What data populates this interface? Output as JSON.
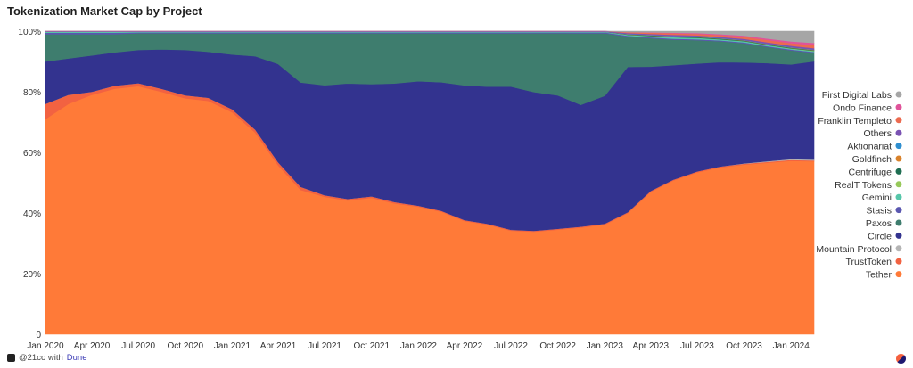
{
  "title": "Tokenization Market Cap by Project",
  "footer": {
    "author": "@21co with",
    "brand": "Dune"
  },
  "chart_data": {
    "type": "area",
    "stacked": true,
    "normalized": true,
    "title": "Tokenization Market Cap by Project",
    "ylim": [
      0,
      100
    ],
    "yticks": [
      "0",
      "20%",
      "40%",
      "60%",
      "80%",
      "100%"
    ],
    "xticks": [
      "Jan 2020",
      "Apr 2020",
      "Jul 2020",
      "Oct 2020",
      "Jan 2021",
      "Apr 2021",
      "Jul 2021",
      "Oct 2021",
      "Jan 2022",
      "Apr 2022",
      "Jul 2022",
      "Oct 2022",
      "Jan 2023",
      "Apr 2023",
      "Jul 2023",
      "Oct 2023",
      "Jan 2024"
    ],
    "grid": false,
    "legend_position": "right",
    "x": [
      "2020-01-01",
      "2020-02-15",
      "2020-04-01",
      "2020-05-15",
      "2020-07-01",
      "2020-08-15",
      "2020-10-01",
      "2020-11-15",
      "2021-01-01",
      "2021-02-15",
      "2021-04-01",
      "2021-05-15",
      "2021-07-01",
      "2021-08-15",
      "2021-10-01",
      "2021-11-15",
      "2022-01-01",
      "2022-02-15",
      "2022-04-01",
      "2022-05-15",
      "2022-07-01",
      "2022-08-15",
      "2022-10-01",
      "2022-11-15",
      "2023-01-01",
      "2023-02-15",
      "2023-04-01",
      "2023-05-15",
      "2023-07-01",
      "2023-08-15",
      "2023-10-01",
      "2023-11-15",
      "2024-01-01",
      "2024-02-15"
    ],
    "series": [
      {
        "name": "Tether",
        "color": "#ff7a38",
        "values": [
          71,
          76,
          79,
          81,
          82,
          80,
          78,
          76,
          73,
          66,
          55,
          47,
          45,
          44,
          45,
          43,
          42,
          40,
          37,
          36,
          34,
          34,
          34.5,
          35,
          36,
          40,
          47,
          51,
          54,
          56,
          57.5,
          58.5,
          59.5,
          59
        ]
      },
      {
        "name": "TrustToken",
        "color": "#f26241",
        "values": [
          5,
          3,
          1,
          1,
          1,
          1,
          1,
          1,
          1,
          1,
          1,
          1,
          0.5,
          0.5,
          0.5,
          0.5,
          0.3,
          0.3,
          0.3,
          0.3,
          0.3,
          0.3,
          0.3,
          0.3,
          0.3,
          0.3,
          0.3,
          0.3,
          0.3,
          0.3,
          0.3,
          0.3,
          0.3,
          0.3
        ]
      },
      {
        "name": "Mountain Protocol",
        "color": "#b5b5b5",
        "values": [
          0,
          0,
          0,
          0,
          0,
          0,
          0,
          0,
          0,
          0,
          0,
          0,
          0,
          0,
          0,
          0,
          0,
          0,
          0,
          0,
          0,
          0,
          0,
          0,
          0,
          0,
          0,
          0,
          0,
          0,
          0.1,
          0.2,
          0.3,
          0.3
        ]
      },
      {
        "name": "Circle",
        "color": "#33338f",
        "values": [
          14,
          12,
          12,
          11,
          11,
          13,
          15,
          15,
          18,
          24,
          32,
          34,
          36,
          38,
          37,
          39,
          41,
          42,
          44,
          45,
          47,
          46,
          44,
          40,
          42,
          48,
          41,
          38,
          36,
          35,
          34.2,
          33.5,
          32.5,
          33.5
        ]
      },
      {
        "name": "Paxos",
        "color": "#3e7d6e",
        "values": [
          9,
          8,
          7,
          6,
          5.5,
          5.3,
          5.5,
          6,
          7,
          7.5,
          10,
          16,
          17,
          16.5,
          16.8,
          16.5,
          15.8,
          16,
          17,
          17.5,
          17.5,
          19.5,
          20.5,
          23.5,
          20.5,
          10,
          9.4,
          8.5,
          7.8,
          7,
          6.5,
          5.5,
          4.8,
          2.9
        ]
      },
      {
        "name": "Stasis",
        "color": "#5a57b0",
        "values": [
          0.5,
          0.5,
          0.5,
          0.5,
          0.3,
          0.3,
          0.3,
          0.3,
          0.3,
          0.3,
          0.3,
          0.3,
          0.3,
          0.3,
          0.3,
          0.3,
          0.3,
          0.3,
          0.3,
          0.3,
          0.3,
          0.3,
          0.3,
          0.3,
          0.3,
          0.3,
          0.3,
          0.3,
          0.3,
          0.3,
          0.3,
          0.3,
          0.3,
          0.3
        ]
      },
      {
        "name": "Gemini",
        "color": "#56c6a9",
        "values": [
          0.3,
          0.3,
          0.3,
          0.3,
          0.2,
          0.2,
          0.2,
          0.2,
          0.2,
          0.2,
          0.2,
          0.2,
          0.2,
          0.2,
          0.2,
          0.2,
          0.2,
          0.2,
          0.2,
          0.2,
          0.2,
          0.2,
          0.2,
          0.2,
          0.2,
          0.3,
          0.4,
          0.5,
          0.5,
          0.4,
          0.4,
          0.4,
          0.3,
          0.3
        ]
      },
      {
        "name": "RealT Tokens",
        "color": "#97c95a",
        "values": [
          0,
          0,
          0,
          0,
          0,
          0,
          0,
          0,
          0,
          0,
          0,
          0,
          0,
          0,
          0,
          0,
          0,
          0,
          0,
          0,
          0,
          0,
          0,
          0,
          0,
          0,
          0,
          0,
          0,
          0,
          0,
          0,
          0.1,
          0.1
        ]
      },
      {
        "name": "Centrifuge",
        "color": "#1f6e52",
        "values": [
          0,
          0,
          0,
          0,
          0,
          0,
          0,
          0,
          0,
          0,
          0,
          0,
          0,
          0,
          0,
          0,
          0,
          0,
          0,
          0,
          0,
          0,
          0,
          0,
          0,
          0.1,
          0.2,
          0.2,
          0.2,
          0.2,
          0.2,
          0.2,
          0.2,
          0.2
        ]
      },
      {
        "name": "Goldfinch",
        "color": "#d9822b",
        "values": [
          0,
          0,
          0,
          0,
          0,
          0,
          0,
          0,
          0,
          0,
          0,
          0,
          0,
          0,
          0,
          0,
          0,
          0,
          0,
          0,
          0,
          0,
          0,
          0,
          0,
          0.1,
          0.1,
          0.1,
          0.1,
          0.1,
          0.1,
          0.1,
          0.1,
          0.1
        ]
      },
      {
        "name": "Aktionariat",
        "color": "#2f8fd0",
        "values": [
          0,
          0,
          0,
          0,
          0,
          0,
          0,
          0,
          0,
          0,
          0,
          0,
          0,
          0,
          0,
          0,
          0,
          0,
          0,
          0,
          0,
          0,
          0,
          0,
          0,
          0.1,
          0.1,
          0.1,
          0.1,
          0.1,
          0.1,
          0.1,
          0.1,
          0.1
        ]
      },
      {
        "name": "Others",
        "color": "#7a52b3",
        "values": [
          0.2,
          0.2,
          0.2,
          0.2,
          0.2,
          0.2,
          0.2,
          0.2,
          0.2,
          0.2,
          0.2,
          0.2,
          0.2,
          0.2,
          0.2,
          0.2,
          0.2,
          0.2,
          0.2,
          0.2,
          0.2,
          0.2,
          0.2,
          0.2,
          0.2,
          0.3,
          0.3,
          0.4,
          0.4,
          0.4,
          0.4,
          0.5,
          0.5,
          0.5
        ]
      },
      {
        "name": "Franklin Templeto",
        "color": "#ec6a4f",
        "values": [
          0,
          0,
          0,
          0,
          0,
          0,
          0,
          0,
          0,
          0,
          0,
          0,
          0,
          0,
          0,
          0,
          0,
          0,
          0,
          0,
          0,
          0,
          0,
          0,
          0,
          0.3,
          0.4,
          0.5,
          0.5,
          0.6,
          0.7,
          0.8,
          0.9,
          1
        ]
      },
      {
        "name": "Ondo Finance",
        "color": "#e0539a",
        "values": [
          0,
          0,
          0,
          0,
          0,
          0,
          0,
          0,
          0,
          0,
          0,
          0,
          0,
          0,
          0,
          0,
          0,
          0,
          0,
          0,
          0,
          0,
          0,
          0,
          0,
          0,
          0.1,
          0.2,
          0.3,
          0.3,
          0.4,
          0.5,
          0.6,
          0.8
        ]
      },
      {
        "name": "First Digital Labs",
        "color": "#a6a6a6",
        "values": [
          0,
          0,
          0,
          0,
          0,
          0,
          0,
          0,
          0,
          0,
          0,
          0,
          0,
          0,
          0,
          0,
          0,
          0,
          0,
          0,
          0,
          0,
          0,
          0,
          0,
          0.3,
          0.4,
          0.5,
          0.6,
          1,
          1.5,
          2.5,
          3.5,
          4
        ]
      }
    ]
  }
}
